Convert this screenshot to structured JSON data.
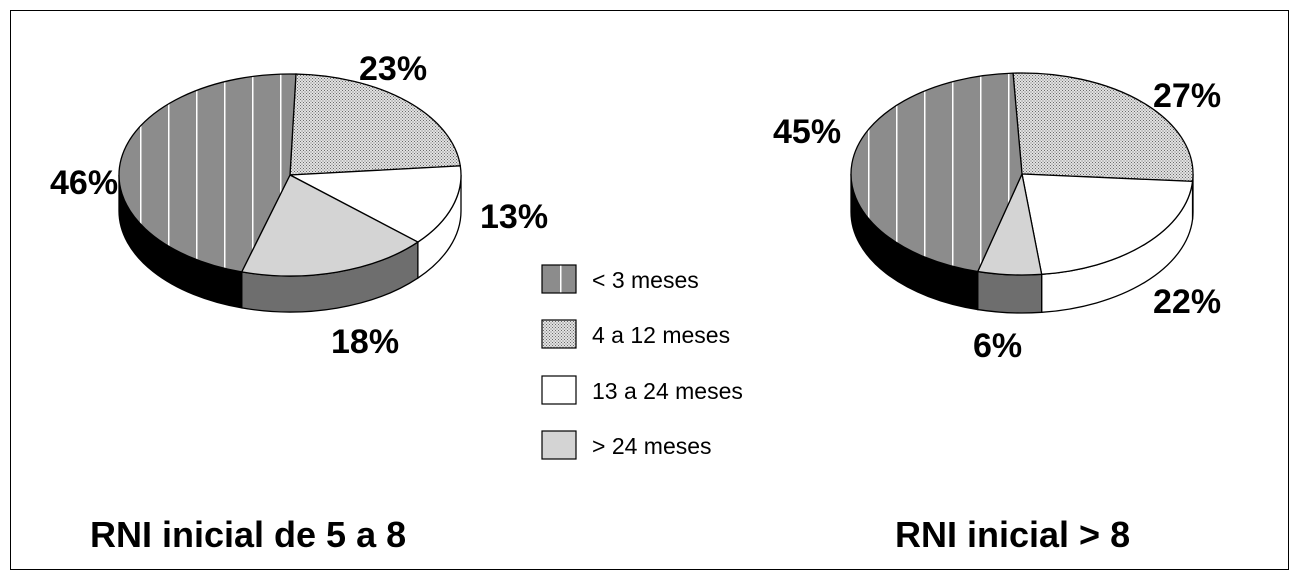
{
  "chart_data": [
    {
      "type": "pie",
      "title": "RNI inicial de 5 a 8",
      "categories": [
        "< 3 meses",
        "4 a 12 meses",
        "13 a 24 meses",
        "> 24 meses"
      ],
      "values": [
        46,
        23,
        13,
        18
      ],
      "labels": [
        "46%",
        "23%",
        "13%",
        "18%"
      ]
    },
    {
      "type": "pie",
      "title": "RNI inicial > 8",
      "categories": [
        "< 3 meses",
        "4 a 12 meses",
        "13 a 24 meses",
        "> 24 meses"
      ],
      "values": [
        45,
        27,
        22,
        6
      ],
      "labels": [
        "45%",
        "27%",
        "22%",
        "6%"
      ]
    }
  ],
  "legend": {
    "placement": "center",
    "items": [
      {
        "label": "< 3 meses",
        "style": "vertical-lines-dark"
      },
      {
        "label": "4 a 12 meses",
        "style": "dotted"
      },
      {
        "label": "13 a 24 meses",
        "style": "white"
      },
      {
        "label": "> 24 meses",
        "style": "light-gray"
      }
    ]
  },
  "colors": {
    "dark": "#8c8c8c",
    "dotted": "#c8c8c8",
    "white": "#ffffff",
    "light": "#d4d4d4",
    "side_black": "#000000",
    "side_dark": "#6e6e6e"
  }
}
